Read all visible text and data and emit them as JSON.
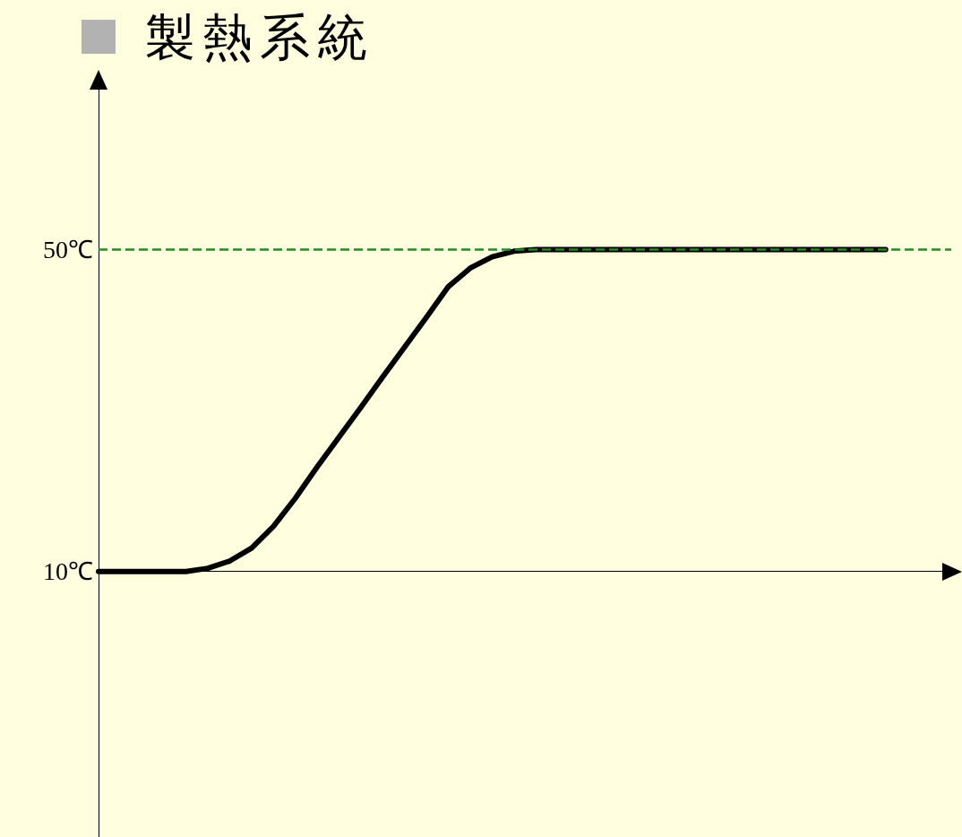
{
  "chart_data": {
    "type": "line",
    "title": "製熱系統",
    "categories": [
      null,
      null,
      null,
      null,
      null,
      null,
      null,
      null,
      null,
      null,
      null,
      null,
      null,
      null,
      null,
      null,
      null,
      null,
      null,
      null,
      null,
      null,
      null,
      null,
      null,
      null,
      null,
      null,
      null,
      null,
      null,
      null,
      null,
      null,
      null,
      null,
      null,
      null,
      null,
      null
    ],
    "series": [
      {
        "color": "#000000",
        "values": [
          10,
          10,
          10,
          10,
          10,
          10.4,
          11.3,
          12.9,
          15.6,
          19.1,
          23.0,
          26.7,
          30.4,
          34.2,
          37.9,
          41.6,
          45.4,
          47.7,
          49.1,
          49.8,
          50,
          50,
          50,
          50,
          50,
          50,
          50,
          50,
          50,
          50,
          50,
          50,
          50,
          50,
          50,
          50,
          50,
          null,
          null,
          null
        ]
      }
    ],
    "ylim": [
      -23,
      71
    ],
    "yticks": [
      {
        "value": 10,
        "label": "10℃"
      },
      {
        "value": 50,
        "label": "50℃"
      }
    ],
    "ref_lines": [
      {
        "axis": "y",
        "value": 50,
        "color": "#228b22",
        "line_style": "dashed"
      },
      {
        "axis": "y",
        "value": 10,
        "color": "#000000",
        "line_style": "solid"
      }
    ],
    "grid": false,
    "marker": "none",
    "line_style": "solid"
  }
}
